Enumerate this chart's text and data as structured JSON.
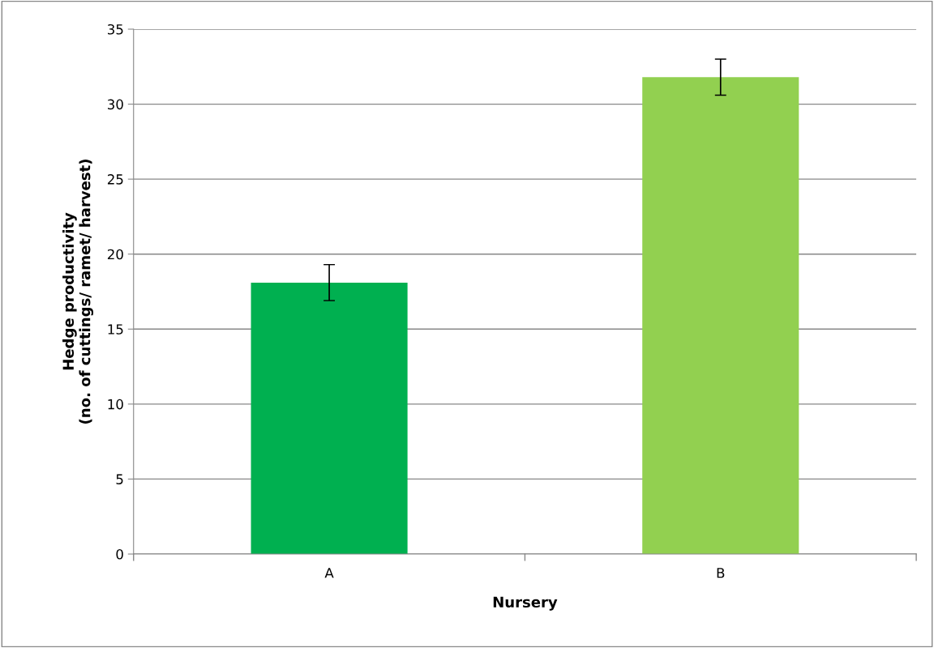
{
  "chart_data": {
    "type": "bar",
    "xlabel": "Nursery",
    "ylabel": "Hedge productivity\n(no. of cuttings/ ramet/ harvest)",
    "categories": [
      "A",
      "B"
    ],
    "values": [
      18.1,
      31.8
    ],
    "errors": [
      1.2,
      1.2
    ],
    "colors": [
      "#00b050",
      "#92d050"
    ],
    "ylim": [
      0,
      35
    ],
    "yticks": [
      0,
      5,
      10,
      15,
      20,
      25,
      30,
      35
    ],
    "grid": "y",
    "legend": false
  }
}
